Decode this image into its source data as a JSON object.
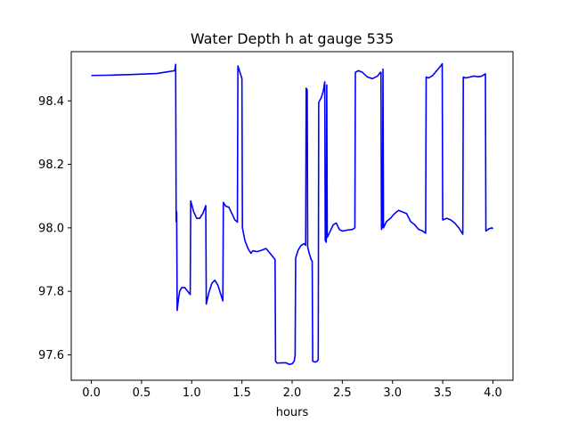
{
  "chart_data": {
    "type": "line",
    "title": "Water Depth h at gauge 535",
    "xlabel": "hours",
    "ylabel": "",
    "xlim": [
      -0.2,
      4.2
    ],
    "ylim": [
      97.52,
      98.555
    ],
    "x_ticks": [
      0.0,
      0.5,
      1.0,
      1.5,
      2.0,
      2.5,
      3.0,
      3.5,
      4.0
    ],
    "x_tick_labels": [
      "0.0",
      "0.5",
      "1.0",
      "1.5",
      "2.0",
      "2.5",
      "3.0",
      "3.5",
      "4.0"
    ],
    "y_ticks": [
      97.6,
      97.8,
      98.0,
      98.2,
      98.4
    ],
    "y_tick_labels": [
      "97.6",
      "97.8",
      "98.0",
      "98.2",
      "98.4"
    ],
    "grid": false,
    "legend": "none",
    "series": [
      {
        "color": "#0000ff",
        "points": [
          [
            0.0,
            98.48
          ],
          [
            0.2,
            98.481
          ],
          [
            0.4,
            98.483
          ],
          [
            0.65,
            98.486
          ],
          [
            0.75,
            98.491
          ],
          [
            0.83,
            98.495
          ],
          [
            0.84,
            98.515
          ],
          [
            0.845,
            98.02
          ],
          [
            0.85,
            98.05
          ],
          [
            0.855,
            97.74
          ],
          [
            0.87,
            97.78
          ],
          [
            0.88,
            97.8
          ],
          [
            0.9,
            97.812
          ],
          [
            0.93,
            97.812
          ],
          [
            0.96,
            97.8
          ],
          [
            0.985,
            97.79
          ],
          [
            0.99,
            98.085
          ],
          [
            1.02,
            98.05
          ],
          [
            1.05,
            98.03
          ],
          [
            1.08,
            98.03
          ],
          [
            1.11,
            98.045
          ],
          [
            1.14,
            98.07
          ],
          [
            1.145,
            97.76
          ],
          [
            1.17,
            97.795
          ],
          [
            1.2,
            97.825
          ],
          [
            1.23,
            97.835
          ],
          [
            1.26,
            97.82
          ],
          [
            1.29,
            97.79
          ],
          [
            1.31,
            97.77
          ],
          [
            1.315,
            98.08
          ],
          [
            1.34,
            98.068
          ],
          [
            1.37,
            98.065
          ],
          [
            1.4,
            98.045
          ],
          [
            1.43,
            98.025
          ],
          [
            1.455,
            98.018
          ],
          [
            1.46,
            98.51
          ],
          [
            1.48,
            98.49
          ],
          [
            1.5,
            98.47
          ],
          [
            1.505,
            98.0
          ],
          [
            1.53,
            97.96
          ],
          [
            1.56,
            97.935
          ],
          [
            1.59,
            97.92
          ],
          [
            1.61,
            97.928
          ],
          [
            1.65,
            97.925
          ],
          [
            1.7,
            97.93
          ],
          [
            1.74,
            97.935
          ],
          [
            1.78,
            97.92
          ],
          [
            1.83,
            97.9
          ],
          [
            1.835,
            97.58
          ],
          [
            1.85,
            97.574
          ],
          [
            1.9,
            97.575
          ],
          [
            1.94,
            97.575
          ],
          [
            1.97,
            97.57
          ],
          [
            2.0,
            97.572
          ],
          [
            2.02,
            97.58
          ],
          [
            2.03,
            97.598
          ],
          [
            2.035,
            97.905
          ],
          [
            2.06,
            97.93
          ],
          [
            2.09,
            97.945
          ],
          [
            2.12,
            97.95
          ],
          [
            2.135,
            97.945
          ],
          [
            2.14,
            98.44
          ],
          [
            2.15,
            98.435
          ],
          [
            2.155,
            97.94
          ],
          [
            2.17,
            97.92
          ],
          [
            2.19,
            97.9
          ],
          [
            2.2,
            97.895
          ],
          [
            2.205,
            97.58
          ],
          [
            2.23,
            97.577
          ],
          [
            2.25,
            97.58
          ],
          [
            2.26,
            97.585
          ],
          [
            2.265,
            98.395
          ],
          [
            2.29,
            98.41
          ],
          [
            2.31,
            98.43
          ],
          [
            2.325,
            98.46
          ],
          [
            2.33,
            97.96
          ],
          [
            2.34,
            97.955
          ],
          [
            2.345,
            98.45
          ],
          [
            2.35,
            97.97
          ],
          [
            2.38,
            97.99
          ],
          [
            2.41,
            98.01
          ],
          [
            2.44,
            98.015
          ],
          [
            2.47,
            97.995
          ],
          [
            2.5,
            97.99
          ],
          [
            2.55,
            97.993
          ],
          [
            2.6,
            97.995
          ],
          [
            2.625,
            98.0
          ],
          [
            2.63,
            98.49
          ],
          [
            2.66,
            98.495
          ],
          [
            2.7,
            98.49
          ],
          [
            2.75,
            98.475
          ],
          [
            2.8,
            98.47
          ],
          [
            2.85,
            98.478
          ],
          [
            2.88,
            98.49
          ],
          [
            2.885,
            98.49
          ],
          [
            2.89,
            97.995
          ],
          [
            2.9,
            98.005
          ],
          [
            2.905,
            98.5
          ],
          [
            2.91,
            98.0
          ],
          [
            2.94,
            98.02
          ],
          [
            2.98,
            98.03
          ],
          [
            3.02,
            98.045
          ],
          [
            3.06,
            98.055
          ],
          [
            3.1,
            98.05
          ],
          [
            3.14,
            98.045
          ],
          [
            3.18,
            98.02
          ],
          [
            3.22,
            98.01
          ],
          [
            3.26,
            97.995
          ],
          [
            3.3,
            97.99
          ],
          [
            3.33,
            97.983
          ],
          [
            3.335,
            98.475
          ],
          [
            3.36,
            98.472
          ],
          [
            3.4,
            98.48
          ],
          [
            3.44,
            98.495
          ],
          [
            3.48,
            98.51
          ],
          [
            3.495,
            98.517
          ],
          [
            3.5,
            98.025
          ],
          [
            3.54,
            98.03
          ],
          [
            3.58,
            98.025
          ],
          [
            3.62,
            98.015
          ],
          [
            3.66,
            98.0
          ],
          [
            3.7,
            97.98
          ],
          [
            3.705,
            98.475
          ],
          [
            3.73,
            98.472
          ],
          [
            3.77,
            98.475
          ],
          [
            3.81,
            98.478
          ],
          [
            3.85,
            98.476
          ],
          [
            3.89,
            98.478
          ],
          [
            3.925,
            98.485
          ],
          [
            3.93,
            97.99
          ],
          [
            3.96,
            97.997
          ],
          [
            3.99,
            98.0
          ],
          [
            4.0,
            97.997
          ]
        ]
      }
    ]
  }
}
